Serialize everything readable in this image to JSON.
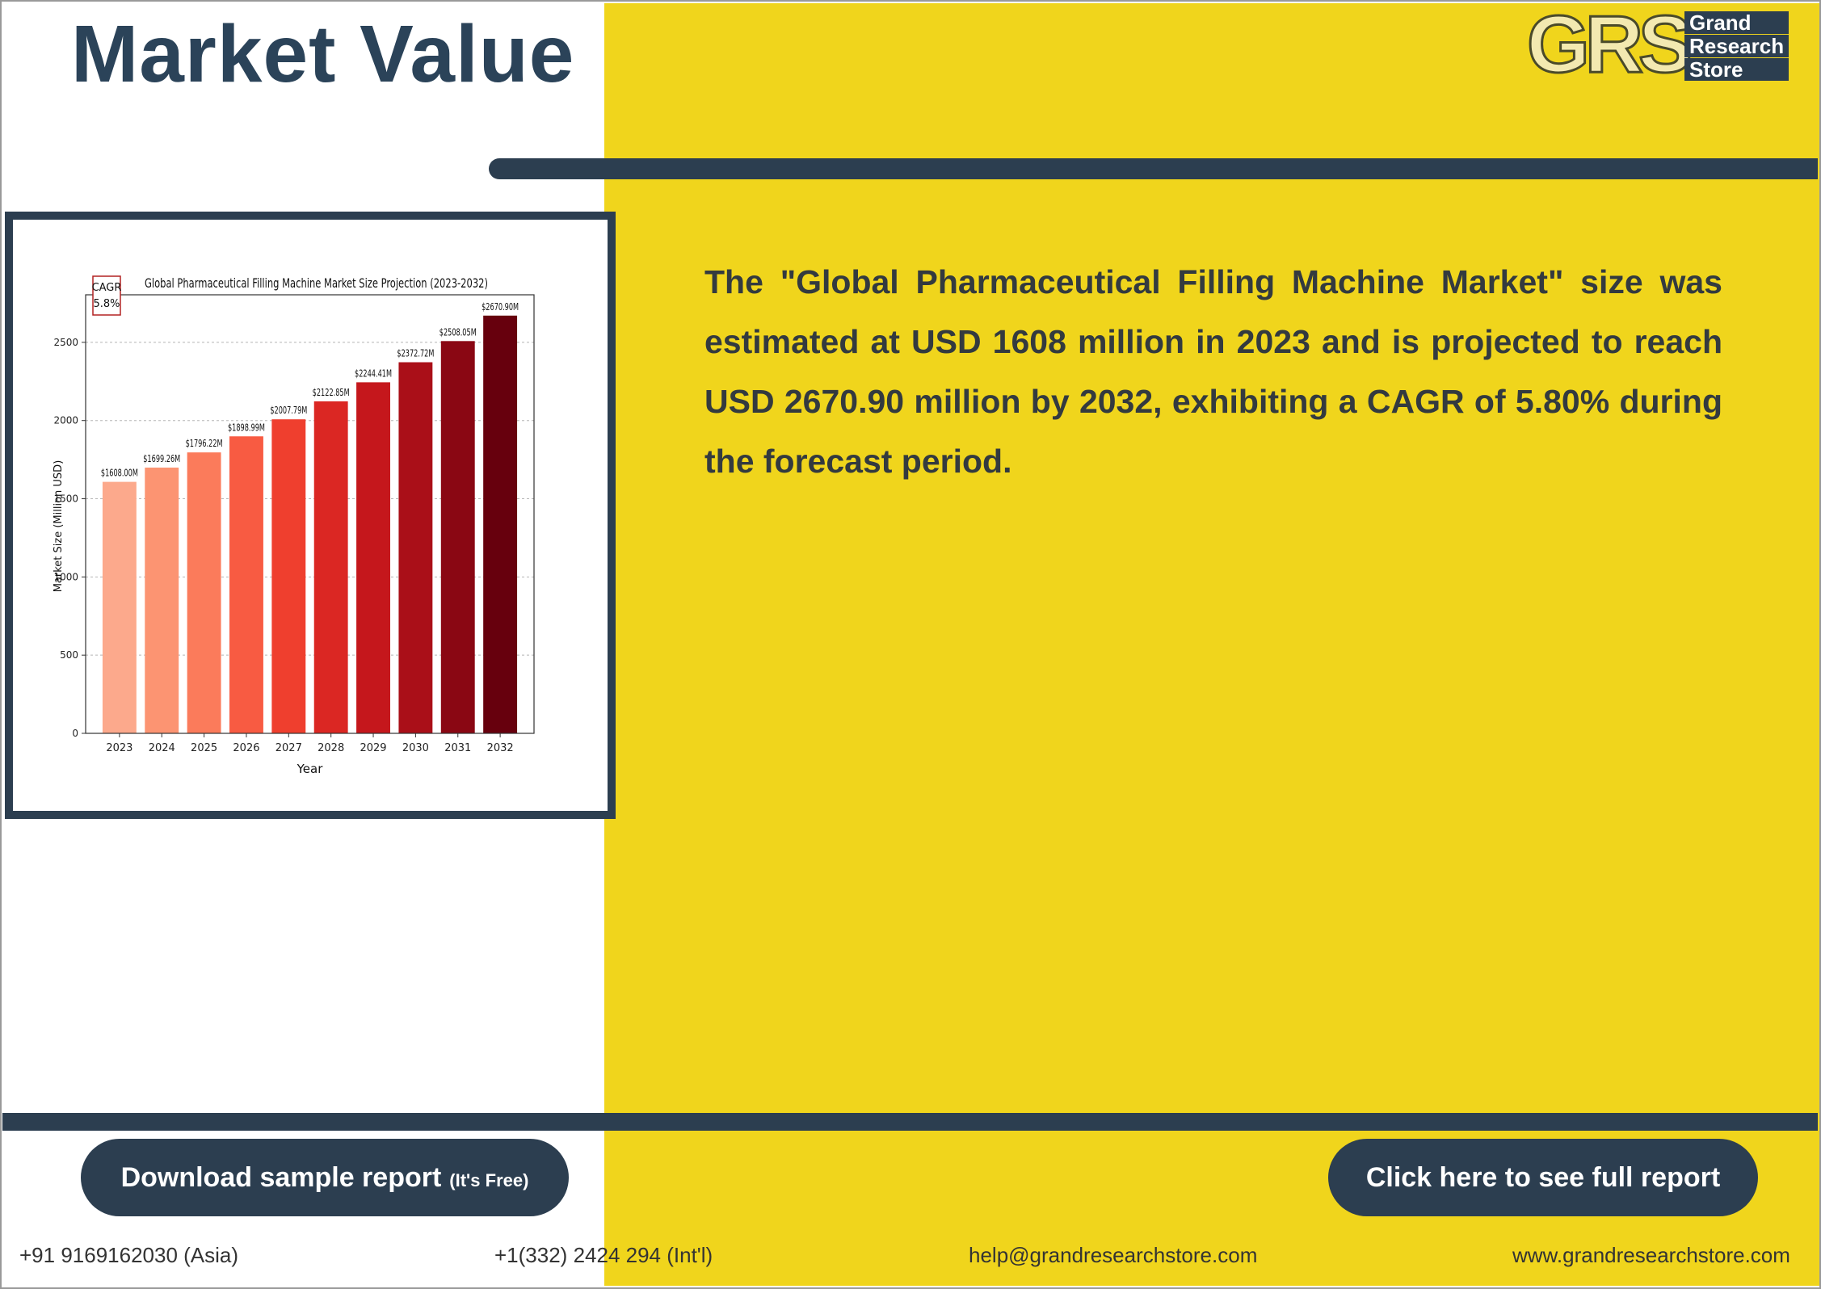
{
  "page": {
    "title": "Market Value",
    "description": "The \"Global Pharmaceutical Filling Machine Market\" size was estimated at USD 1608 million in 2023 and is projected to reach USD 2670.90 million by 2032, exhibiting a CAGR of 5.80% during the forecast period."
  },
  "logo": {
    "mark": "GRS",
    "words": [
      "Grand",
      "Research",
      "Store"
    ]
  },
  "buttons": {
    "download_label": "Download sample report",
    "download_note": "(It's Free)",
    "full_report_label": "Click here to see full report"
  },
  "contacts": {
    "phone_asia": "+91 9169162030 (Asia)",
    "phone_intl": "+1(332) 2424 294 (Int'l)",
    "email": "help@grandresearchstore.com",
    "website": "www.grandresearchstore.com"
  },
  "colors": {
    "navy": "#2c3e50",
    "yellow": "#f0d51c",
    "bars": [
      "#fca98c",
      "#fc9472",
      "#fb7b5b",
      "#f85b42",
      "#ef3f2e",
      "#db2723",
      "#c5171c",
      "#aa0f18",
      "#8a0713",
      "#67000d"
    ]
  },
  "chart_data": {
    "type": "bar",
    "title": "Global Pharmaceutical Filling Machine Market Size Projection (2023-2032)",
    "xlabel": "Year",
    "ylabel": "Market Size (Million USD)",
    "categories": [
      "2023",
      "2024",
      "2025",
      "2026",
      "2027",
      "2028",
      "2029",
      "2030",
      "2031",
      "2032"
    ],
    "values": [
      1608.0,
      1699.26,
      1796.22,
      1898.99,
      2007.79,
      2122.85,
      2244.41,
      2372.72,
      2508.05,
      2670.9
    ],
    "data_labels": [
      "$1608.00M",
      "$1699.26M",
      "$1796.22M",
      "$1898.99M",
      "$2007.79M",
      "$2122.85M",
      "$2244.41M",
      "$2372.72M",
      "$2508.05M",
      "$2670.90M"
    ],
    "yticks": [
      0,
      500,
      1000,
      1500,
      2000,
      2500
    ],
    "ylim": [
      0,
      2804
    ],
    "grid": true,
    "annotation": {
      "line1": "CAGR",
      "line2": "5.8%"
    }
  }
}
